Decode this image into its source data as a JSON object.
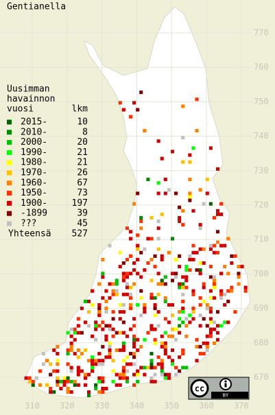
{
  "title": "Gentianella",
  "legend": {
    "header": [
      "Uusimman",
      "havainnon",
      "vuosi"
    ],
    "count_header": "lkm",
    "items": [
      {
        "label": "2015-",
        "count": 10,
        "color": "#006400"
      },
      {
        "label": "2010-",
        "count": 8,
        "color": "#008c00"
      },
      {
        "label": "2000-",
        "count": 20,
        "color": "#00c000"
      },
      {
        "label": "1990-",
        "count": 21,
        "color": "#00ff00"
      },
      {
        "label": "1980-",
        "count": 21,
        "color": "#ffff00"
      },
      {
        "label": "1970-",
        "count": 26,
        "color": "#ffc000"
      },
      {
        "label": "1960-",
        "count": 67,
        "color": "#ff8000"
      },
      {
        "label": "1950-",
        "count": 73,
        "color": "#ff3000"
      },
      {
        "label": "1900-",
        "count": 197,
        "color": "#d00000"
      },
      {
        "label": "-1899",
        "count": 39,
        "color": "#800000"
      },
      {
        "label": "???",
        "count": 45,
        "color": "#c0c0c0"
      }
    ],
    "total_label": "Yhteensä",
    "total": 527
  },
  "xticks": [
    310,
    320,
    330,
    340,
    350,
    360,
    370
  ],
  "yticks": [
    670,
    680,
    690,
    700,
    710,
    720,
    730,
    740,
    750,
    760,
    770
  ],
  "badge": {
    "cc": "cc",
    "by": "BY"
  }
}
